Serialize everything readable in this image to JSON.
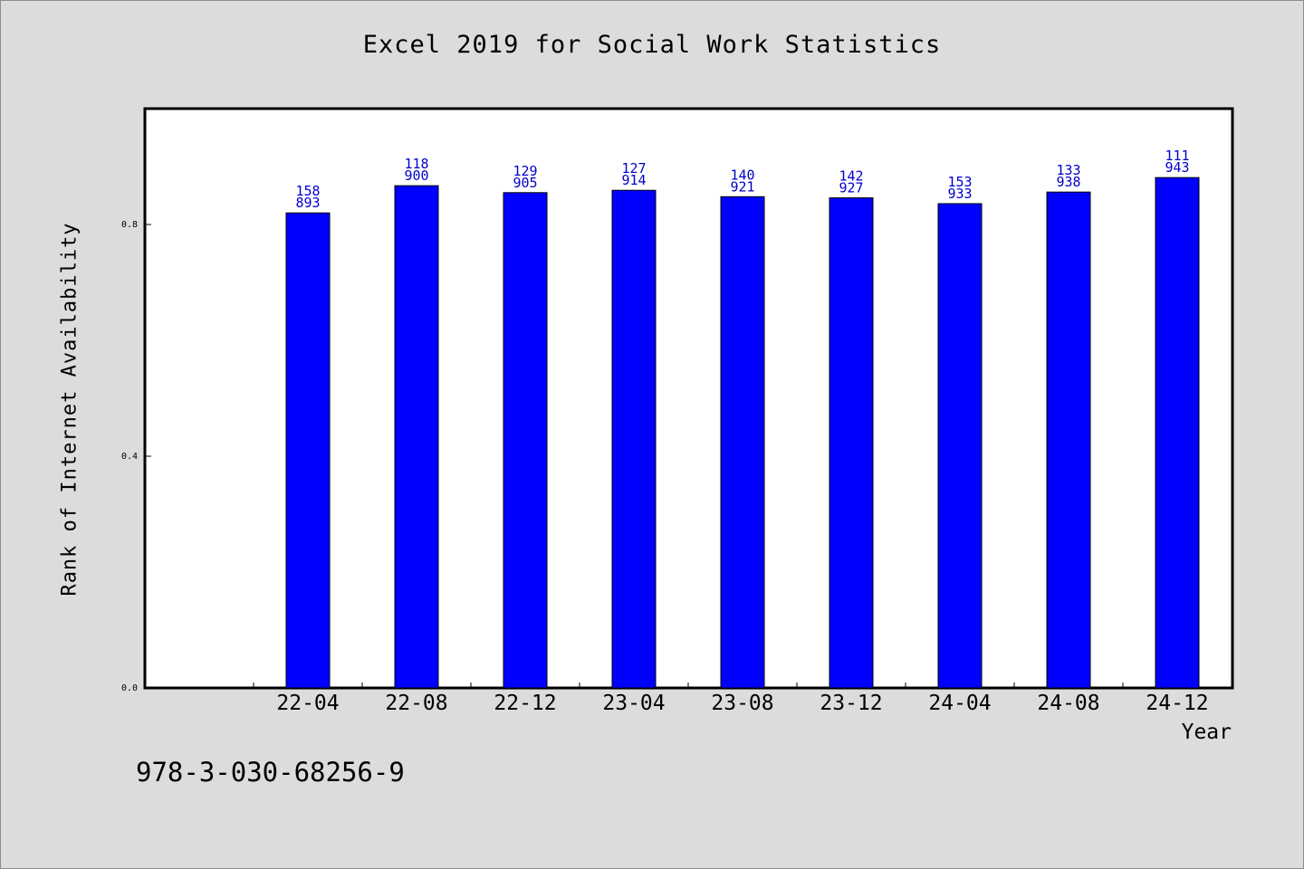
{
  "chart_data": {
    "type": "bar",
    "title": "Excel 2019 for Social Work Statistics",
    "xlabel": "Year",
    "ylabel": "Rank of Internet Availability",
    "ylim": [
      0,
      1.0
    ],
    "yticks": [
      "0.0",
      "0.4",
      "0.8"
    ],
    "ytick_values": [
      0.0,
      0.4,
      0.8
    ],
    "grid": false,
    "categories": [
      "22-04",
      "22-08",
      "22-12",
      "23-04",
      "23-08",
      "23-12",
      "24-04",
      "24-08",
      "24-12"
    ],
    "values": [
      0.82,
      0.867,
      0.855,
      0.859,
      0.848,
      0.846,
      0.836,
      0.856,
      0.881
    ],
    "bar_labels_top": [
      "158",
      "118",
      "129",
      "127",
      "140",
      "142",
      "153",
      "133",
      "111"
    ],
    "bar_labels_bottom": [
      "893",
      "900",
      "905",
      "914",
      "921",
      "927",
      "933",
      "938",
      "943"
    ],
    "bar_color": "#0000ff",
    "label_color": "#0000cc"
  },
  "footer_text": "978-3-030-68256-9"
}
